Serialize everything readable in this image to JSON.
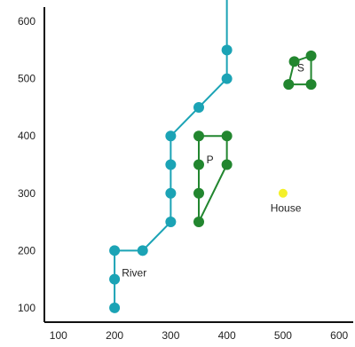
{
  "chart_data": {
    "type": "scatter",
    "title": "",
    "xlabel": "",
    "ylabel": "",
    "xlim": [
      75,
      625
    ],
    "ylim": [
      75,
      625
    ],
    "xticks": [
      100,
      200,
      300,
      400,
      500,
      600
    ],
    "yticks": [
      100,
      200,
      300,
      400,
      500,
      600
    ],
    "grid": false,
    "colors": {
      "river": "#1ba3b5",
      "shape": "#22862f",
      "house": "#f4f02a",
      "axis": "#111111"
    },
    "series": [
      {
        "key": "river",
        "kind": "polyline",
        "label": "River",
        "points": [
          [
            200,
            100
          ],
          [
            200,
            150
          ],
          [
            200,
            200
          ],
          [
            250,
            200
          ],
          [
            300,
            250
          ],
          [
            300,
            300
          ],
          [
            300,
            350
          ],
          [
            300,
            400
          ],
          [
            350,
            450
          ],
          [
            400,
            500
          ],
          [
            400,
            550
          ]
        ],
        "line_extends_to": [
          [
            400,
            640
          ]
        ]
      },
      {
        "key": "P",
        "kind": "polygon",
        "label": "P",
        "points": [
          [
            350,
            400
          ],
          [
            400,
            400
          ],
          [
            400,
            350
          ],
          [
            350,
            250
          ],
          [
            350,
            300
          ],
          [
            350,
            350
          ]
        ]
      },
      {
        "key": "S",
        "kind": "polygon",
        "label": "S",
        "points": [
          [
            520,
            530
          ],
          [
            550,
            540
          ],
          [
            550,
            490
          ],
          [
            510,
            490
          ]
        ]
      },
      {
        "key": "house",
        "kind": "point",
        "label": "House",
        "points": [
          [
            500,
            300
          ]
        ]
      }
    ]
  }
}
